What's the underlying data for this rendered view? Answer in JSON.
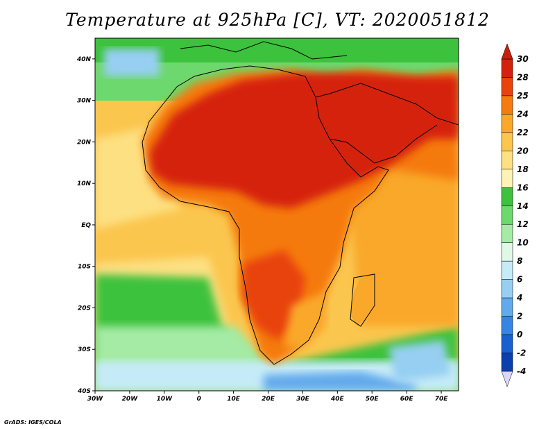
{
  "title": "Temperature at 925hPa [C], VT: 2020051812",
  "credit": "GrADS: IGES/COLA",
  "map": {
    "lon_range": [
      -30,
      75
    ],
    "lat_range": [
      -40,
      45
    ],
    "lon_ticks": [
      "30W",
      "20W",
      "10W",
      "0",
      "10E",
      "20E",
      "30E",
      "40E",
      "50E",
      "60E",
      "70E"
    ],
    "lat_ticks": [
      "40N",
      "30N",
      "20N",
      "10N",
      "EQ",
      "10S",
      "20S",
      "30S",
      "40S"
    ]
  },
  "colorbar": {
    "levels": [
      "30",
      "28",
      "25",
      "24",
      "22",
      "20",
      "18",
      "16",
      "14",
      "12",
      "10",
      "8",
      "6",
      "4",
      "2",
      "0",
      "-2",
      "-4"
    ],
    "colors": [
      "#d5200d",
      "#e8430d",
      "#f57a10",
      "#f9a82a",
      "#fbc64e",
      "#fde082",
      "#fdf3b5",
      "#3cc23c",
      "#6dd86d",
      "#a5eba5",
      "#e0f8e6",
      "#c6ebf8",
      "#96cff2",
      "#63aaec",
      "#3785e3",
      "#1a5fd0",
      "#0c3fae",
      "#0a1f7a"
    ],
    "top_triangle_color": "#c81e0c",
    "bottom_triangle_color": "#ddd6f6"
  },
  "colors": {
    "ocean_north": "#6dd86d",
    "ocean_tropical": "#fbc64e",
    "ocean_south": "#3cc23c",
    "land_hot": "#d5200d",
    "coastline": "#000000"
  }
}
